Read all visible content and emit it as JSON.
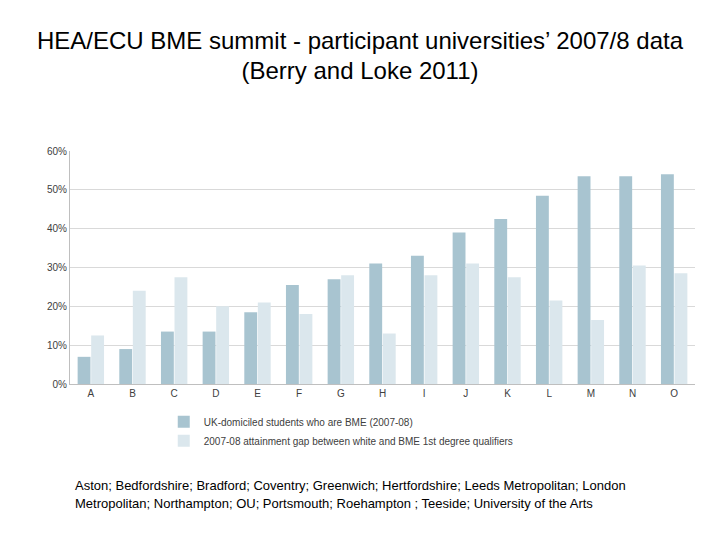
{
  "chart_data": {
    "type": "bar",
    "title": "HEA/ECU BME summit - participant universities’ 2007/8 data (Berry and Loke 2011)",
    "categories": [
      "A",
      "B",
      "C",
      "D",
      "E",
      "F",
      "G",
      "H",
      "I",
      "J",
      "K",
      "L",
      "M",
      "N",
      "O"
    ],
    "series": [
      {
        "name": "UK-domiciled students who are BME (2007-08)",
        "color": "#a8c4d0",
        "values": [
          7,
          9,
          13.5,
          13.5,
          18.5,
          25.5,
          27,
          31,
          33,
          39,
          42.5,
          48.5,
          53.5,
          53.5,
          54
        ]
      },
      {
        "name": "2007-08 attainment gap between white and BME 1st degree qualifiers",
        "color": "#dbe7ed",
        "values": [
          12.5,
          24,
          27.5,
          20,
          21,
          18,
          28,
          13,
          28,
          31,
          27.5,
          21.5,
          16.5,
          30.5,
          28.5
        ]
      }
    ],
    "ylim": [
      0,
      60
    ],
    "yticks": [
      {
        "value": 0,
        "label": "0%"
      },
      {
        "value": 10,
        "label": "10%"
      },
      {
        "value": 20,
        "label": "20%"
      },
      {
        "value": 30,
        "label": "30%"
      },
      {
        "value": 40,
        "label": "40%"
      },
      {
        "value": 50,
        "label": "50%"
      },
      {
        "value": 60,
        "label": "60%"
      }
    ],
    "grid": true,
    "legend": "bottom",
    "annotations": [
      "Aston; Bedfordshire; Bradford; Coventry; Greenwich; Hertfordshire; Leeds Metropolitan; London Metropolitan; Northampton; OU; Portsmouth; Roehampton ; Teeside; University of the Arts"
    ]
  }
}
